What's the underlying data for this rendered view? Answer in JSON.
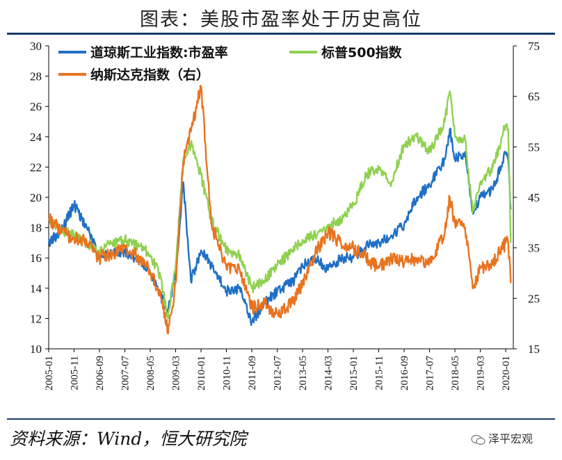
{
  "page": {
    "title": "图表：美股市盈率处于历史高位",
    "source": "资料来源：Wind，恒大研究院",
    "watermark": "泽平宏观"
  },
  "chart_data": {
    "type": "line",
    "title": "图表：美股市盈率处于历史高位",
    "left_axis": {
      "range": [
        10,
        30
      ],
      "ticks": [
        10,
        12,
        14,
        16,
        18,
        20,
        22,
        24,
        26,
        28,
        30
      ]
    },
    "right_axis": {
      "range": [
        15,
        75
      ],
      "ticks": [
        15,
        25,
        35,
        45,
        55,
        65,
        75
      ]
    },
    "x_ticks": [
      "2005-01",
      "2005-11",
      "2006-09",
      "2007-07",
      "2008-05",
      "2009-03",
      "2010-01",
      "2010-11",
      "2011-09",
      "2012-07",
      "2013-05",
      "2014-03",
      "2015-01",
      "2015-11",
      "2016-09",
      "2017-07",
      "2018-05",
      "2019-03",
      "2020-01"
    ],
    "colors": {
      "dow": "#1f6fc5",
      "sp500": "#8fd14f",
      "nasdaq": "#e8731f"
    },
    "series": [
      {
        "name": "道琼斯工业指数:市盈率",
        "axis": "left",
        "color": "#1f6fc5",
        "x": [
          "2005-01",
          "2005-06",
          "2005-11",
          "2006-04",
          "2006-09",
          "2007-02",
          "2007-07",
          "2008-01",
          "2008-05",
          "2008-09",
          "2008-12",
          "2009-03",
          "2009-06",
          "2009-09",
          "2010-01",
          "2010-05",
          "2010-11",
          "2011-04",
          "2011-09",
          "2012-02",
          "2012-07",
          "2013-01",
          "2013-05",
          "2013-10",
          "2014-03",
          "2014-08",
          "2015-01",
          "2015-06",
          "2015-11",
          "2016-04",
          "2016-09",
          "2017-02",
          "2017-07",
          "2018-01",
          "2018-03",
          "2018-05",
          "2018-09",
          "2018-12",
          "2019-03",
          "2019-08",
          "2020-01",
          "2020-02",
          "2020-03"
        ],
        "values": [
          17.0,
          17.8,
          19.5,
          18.0,
          16.0,
          16.3,
          16.4,
          15.8,
          15.0,
          13.5,
          12.5,
          15.0,
          21.0,
          14.5,
          16.5,
          15.5,
          13.8,
          14.0,
          11.8,
          13.0,
          13.8,
          14.4,
          15.5,
          16.0,
          15.2,
          16.0,
          16.0,
          16.8,
          17.0,
          17.5,
          18.2,
          20.0,
          20.8,
          22.5,
          24.5,
          22.5,
          23.0,
          19.0,
          20.0,
          20.5,
          23.0,
          22.5,
          19.2
        ]
      },
      {
        "name": "标普500指数",
        "axis": "left",
        "color": "#8fd14f",
        "x": [
          "2005-01",
          "2005-06",
          "2005-11",
          "2006-04",
          "2006-09",
          "2007-02",
          "2007-07",
          "2008-01",
          "2008-05",
          "2008-09",
          "2008-12",
          "2009-03",
          "2009-06",
          "2009-09",
          "2010-01",
          "2010-05",
          "2010-11",
          "2011-04",
          "2011-09",
          "2012-02",
          "2012-07",
          "2013-01",
          "2013-05",
          "2013-10",
          "2014-03",
          "2014-08",
          "2015-01",
          "2015-06",
          "2015-11",
          "2016-04",
          "2016-09",
          "2017-02",
          "2017-07",
          "2018-01",
          "2018-03",
          "2018-05",
          "2018-09",
          "2018-12",
          "2019-03",
          "2019-08",
          "2020-01",
          "2020-02",
          "2020-03"
        ],
        "values": [
          18.5,
          17.8,
          17.5,
          17.0,
          16.5,
          17.0,
          17.2,
          16.8,
          16.2,
          14.8,
          12.0,
          15.5,
          22.5,
          23.5,
          21.5,
          18.5,
          16.5,
          16.2,
          14.0,
          14.5,
          15.5,
          16.5,
          17.2,
          17.5,
          18.2,
          18.5,
          19.5,
          21.5,
          22.0,
          21.0,
          23.5,
          24.0,
          23.0,
          25.0,
          27.0,
          24.0,
          23.8,
          19.0,
          21.0,
          22.0,
          24.8,
          24.5,
          17.0
        ]
      },
      {
        "name": "纳斯达克指数（右）",
        "axis": "right",
        "color": "#e8731f",
        "x": [
          "2005-01",
          "2005-06",
          "2005-11",
          "2006-04",
          "2006-09",
          "2007-02",
          "2007-07",
          "2008-01",
          "2008-05",
          "2008-09",
          "2008-12",
          "2009-03",
          "2009-06",
          "2009-09",
          "2010-01",
          "2010-05",
          "2010-11",
          "2011-04",
          "2011-09",
          "2012-02",
          "2012-07",
          "2013-01",
          "2013-05",
          "2013-10",
          "2014-03",
          "2014-08",
          "2015-01",
          "2015-06",
          "2015-11",
          "2016-04",
          "2016-09",
          "2017-02",
          "2017-07",
          "2018-01",
          "2018-03",
          "2018-05",
          "2018-09",
          "2018-12",
          "2019-03",
          "2019-08",
          "2020-01",
          "2020-02",
          "2020-03"
        ],
        "values": [
          41,
          38,
          37,
          36,
          33,
          34,
          35,
          33,
          30,
          26,
          18,
          28,
          52,
          58,
          67,
          40,
          31,
          31,
          23,
          24,
          22,
          24,
          28,
          34,
          38,
          36,
          35,
          33,
          31,
          33,
          32,
          33,
          32,
          38,
          45,
          40,
          39,
          27,
          31,
          32,
          36,
          36,
          28
        ]
      }
    ]
  }
}
